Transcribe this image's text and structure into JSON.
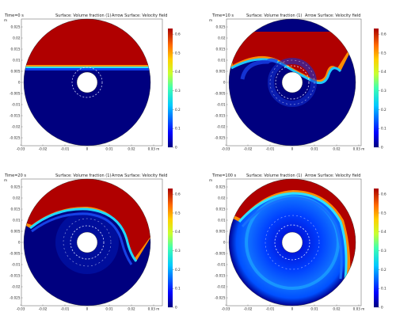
{
  "chart_data": [
    {
      "type": "heatmap",
      "time_label": "Time=0 s",
      "surface_label": "Surface: Volume fraction (1)",
      "arrow_label": "Arrow Surface: Velocity field",
      "x_ticks": [
        "-0.03",
        "-0.02",
        "-0.01",
        "0",
        "0.01",
        "0.02",
        "0.03 m"
      ],
      "y_ticks": [
        "0.025",
        "0.02",
        "0.015",
        "0.01",
        "0.005",
        "0",
        "-0.005",
        "-0.01",
        "-0.015",
        "-0.02",
        "-0.025"
      ],
      "y_unit": "m",
      "colorbar_ticks": [
        "0.6",
        "0.5",
        "0.4",
        "0.3",
        "0.2",
        "0.1",
        "0"
      ],
      "colorbar_range": [
        0,
        0.63
      ],
      "interface_level_m": 0.008
    },
    {
      "type": "heatmap",
      "time_label": "Time=10 s",
      "surface_label": "Surface: Volume fraction (1)",
      "arrow_label": "Arrow Surface: Velocity field",
      "x_ticks": [
        "-0.03",
        "-0.02",
        "-0.01",
        "0",
        "0.01",
        "0.02",
        "0.03 m"
      ],
      "y_ticks": [
        "0.025",
        "0.02",
        "0.015",
        "0.01",
        "0.005",
        "0",
        "-0.005",
        "-0.01",
        "-0.015",
        "-0.02",
        "-0.025"
      ],
      "y_unit": "m",
      "colorbar_ticks": [
        "0.6",
        "0.5",
        "0.4",
        "0.3",
        "0.2",
        "0.1",
        "0"
      ],
      "colorbar_range": [
        0,
        0.63
      ]
    },
    {
      "type": "heatmap",
      "time_label": "Time=20 s",
      "surface_label": "Surface: Volume fraction (1)",
      "arrow_label": "Arrow Surface: Velocity field",
      "x_ticks": [
        "-0.03",
        "-0.02",
        "-0.01",
        "0",
        "0.01",
        "0.02",
        "0.03 m"
      ],
      "y_ticks": [
        "0.025",
        "0.02",
        "0.015",
        "0.01",
        "0.005",
        "0",
        "-0.005",
        "-0.01",
        "-0.015",
        "-0.02",
        "-0.025"
      ],
      "y_unit": "m",
      "colorbar_ticks": [
        "0.6",
        "0.5",
        "0.4",
        "0.3",
        "0.2",
        "0.1",
        "0"
      ],
      "colorbar_range": [
        0,
        0.63
      ]
    },
    {
      "type": "heatmap",
      "time_label": "Time=100 s",
      "surface_label": "Surface: Volume fraction (1)",
      "arrow_label": "Arrow Surface: Velocity field",
      "x_ticks": [
        "-0.03",
        "-0.02",
        "-0.01",
        "0",
        "0.01",
        "0.02",
        "0.03 m"
      ],
      "y_ticks": [
        "0.025",
        "0.02",
        "0.015",
        "0.01",
        "0.005",
        "0",
        "-0.005",
        "-0.01",
        "-0.015",
        "-0.02",
        "-0.025"
      ],
      "y_unit": "m",
      "colorbar_ticks": [
        "0.6",
        "0.5",
        "0.4",
        "0.3",
        "0.2",
        "0.1",
        "0"
      ],
      "colorbar_range": [
        0,
        0.63
      ]
    }
  ],
  "colors": {
    "red": "#b00000",
    "dark_blue": "#00007f",
    "mid_blue": "#1030e0",
    "cyan": "#00c8ff",
    "yellow": "#ffd000",
    "orange": "#ff6a00"
  }
}
